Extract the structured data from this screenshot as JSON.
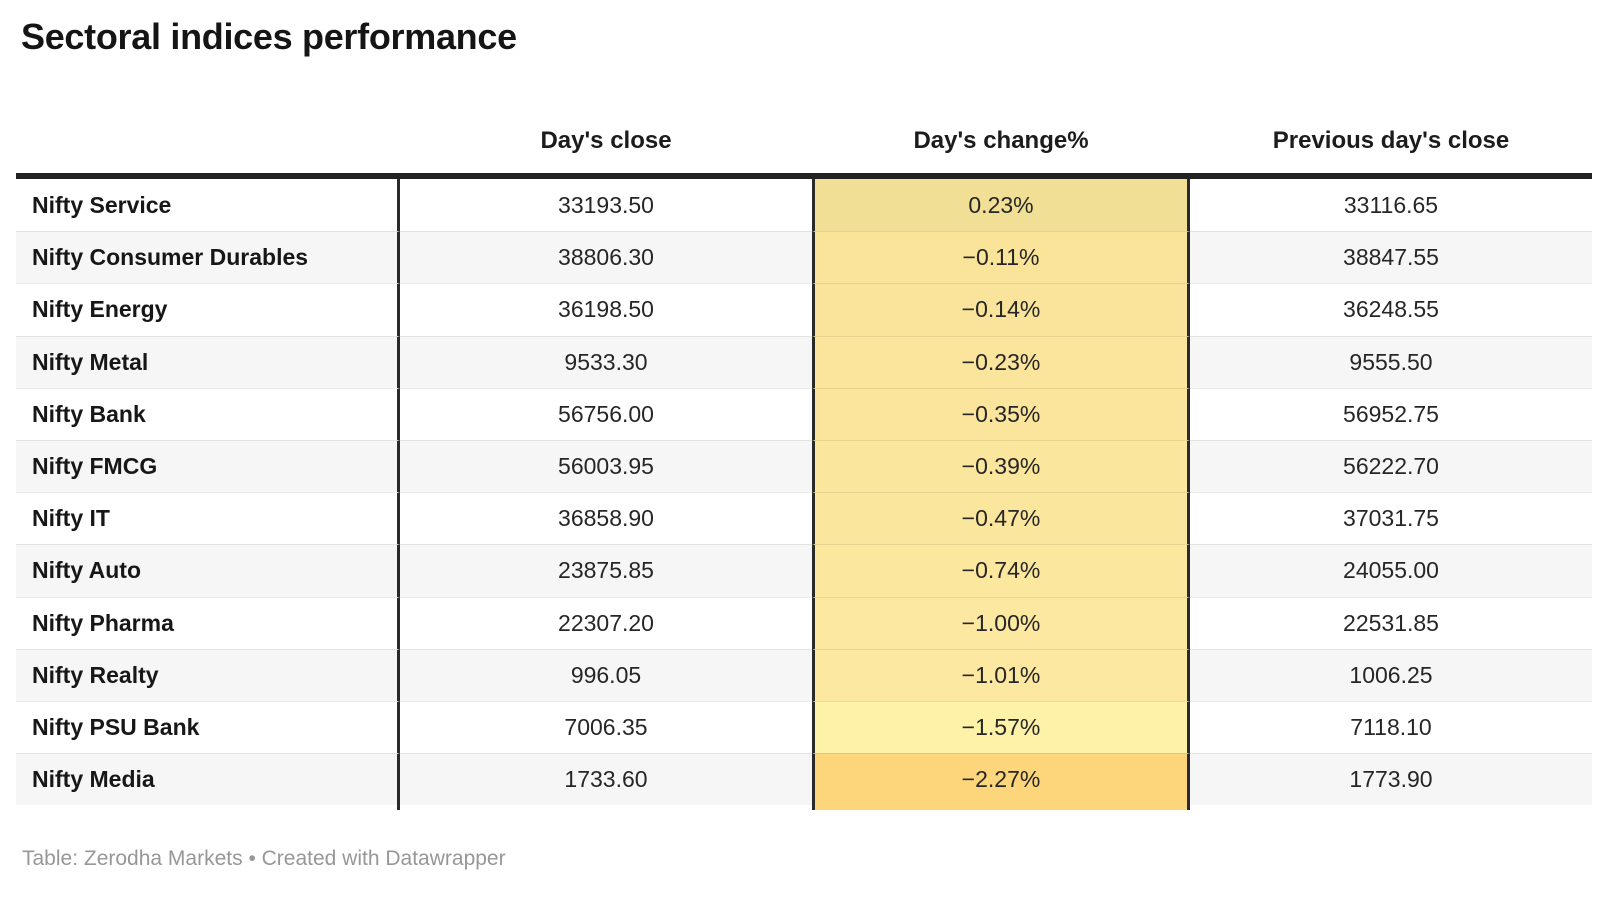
{
  "title": "Sectoral indices performance",
  "header": {
    "close_label": "Day's close",
    "change_label": "Day's change%",
    "prev_label": "Previous day's close"
  },
  "footer": {
    "prefix": "Table: ",
    "source": "Zerodha Markets",
    "separator": " • ",
    "created_with": "Created with ",
    "tool": "Datawrapper"
  },
  "colors": {
    "thick_rule": "#222222",
    "column_divider": "#2a2a2a",
    "stripe": "#f6f6f6",
    "footer_text": "#979797",
    "title_text": "#151515"
  },
  "chart_data": {
    "type": "table",
    "title": "Sectoral indices performance",
    "columns": [
      "",
      "Day's close",
      "Day's change%",
      "Previous day's close"
    ],
    "rows": [
      {
        "name": "Nifty Service",
        "close": "33193.50",
        "change": "0.23%",
        "prev": "33116.65",
        "change_bg": "#f0df94"
      },
      {
        "name": "Nifty Consumer Durables",
        "close": "38806.30",
        "change": "−0.11%",
        "prev": "38847.55",
        "change_bg": "#fae49a"
      },
      {
        "name": "Nifty Energy",
        "close": "36198.50",
        "change": "−0.14%",
        "prev": "36248.55",
        "change_bg": "#fae49b"
      },
      {
        "name": "Nifty Metal",
        "close": "9533.30",
        "change": "−0.23%",
        "prev": "9555.50",
        "change_bg": "#fbe59c"
      },
      {
        "name": "Nifty Bank",
        "close": "56756.00",
        "change": "−0.35%",
        "prev": "56952.75",
        "change_bg": "#fbe59d"
      },
      {
        "name": "Nifty FMCG",
        "close": "56003.95",
        "change": "−0.39%",
        "prev": "56222.70",
        "change_bg": "#fbe69d"
      },
      {
        "name": "Nifty IT",
        "close": "36858.90",
        "change": "−0.47%",
        "prev": "37031.75",
        "change_bg": "#fbe69e"
      },
      {
        "name": "Nifty Auto",
        "close": "23875.85",
        "change": "−0.74%",
        "prev": "24055.00",
        "change_bg": "#fce79f"
      },
      {
        "name": "Nifty Pharma",
        "close": "22307.20",
        "change": "−1.00%",
        "prev": "22531.85",
        "change_bg": "#fce8a1"
      },
      {
        "name": "Nifty Realty",
        "close": "996.05",
        "change": "−1.01%",
        "prev": "1006.25",
        "change_bg": "#fce8a1"
      },
      {
        "name": "Nifty PSU Bank",
        "close": "7006.35",
        "change": "−1.57%",
        "prev": "7118.10",
        "change_bg": "#fdf2a7"
      },
      {
        "name": "Nifty Media",
        "close": "1733.60",
        "change": "−2.27%",
        "prev": "1773.90",
        "change_bg": "#fdd67c"
      }
    ]
  }
}
